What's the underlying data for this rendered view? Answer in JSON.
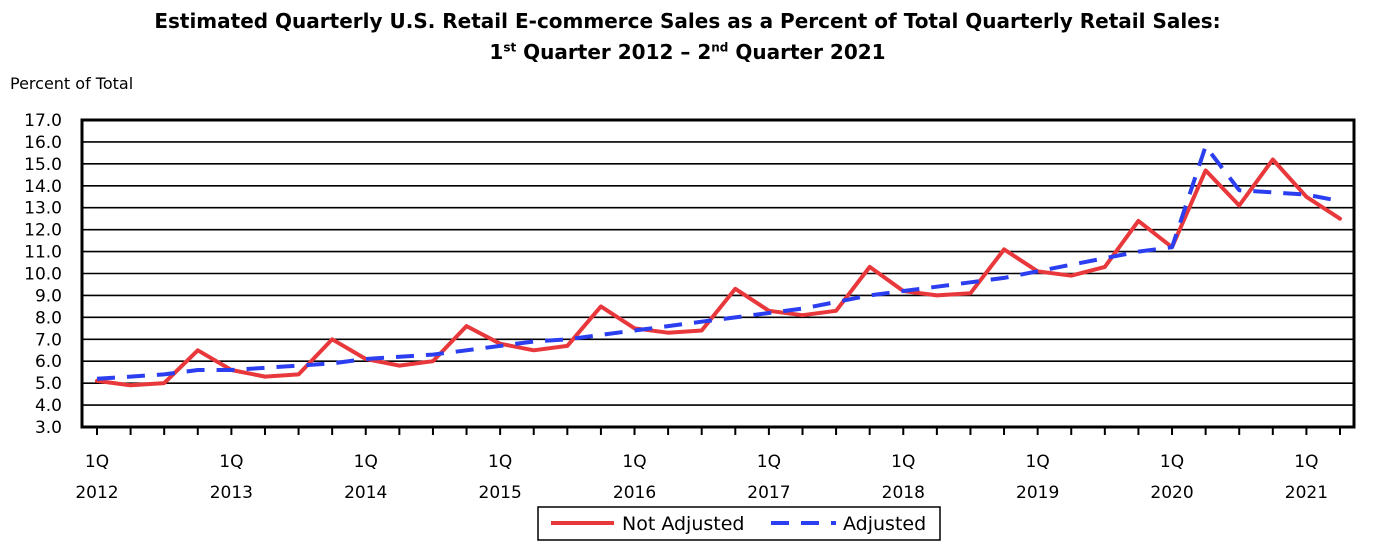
{
  "title": {
    "line1": "Estimated Quarterly U.S. Retail E-commerce Sales as a Percent of Total Quarterly Retail Sales:",
    "line2_a": "1",
    "line2_sup_a": "st",
    "line2_b": " Quarter 2012 – 2",
    "line2_sup_b": "nd",
    "line2_c": " Quarter 2021"
  },
  "ylabel": "Percent of Total",
  "colors": {
    "not_adjusted": "#E8383B",
    "adjusted": "#2B3FF0"
  },
  "chart_data": {
    "type": "line",
    "title": "Estimated Quarterly U.S. Retail E-commerce Sales as a Percent of Total Quarterly Retail Sales: 1st Quarter 2012 – 2nd Quarter 2021",
    "ylabel": "Percent of Total",
    "xlabel": "",
    "ylim": [
      3.0,
      17.0
    ],
    "ytick_labels": [
      "3.0",
      "4.0",
      "5.0",
      "6.0",
      "7.0",
      "8.0",
      "9.0",
      "10.0",
      "11.0",
      "12.0",
      "13.0",
      "14.0",
      "15.0",
      "16.0",
      "17.0"
    ],
    "xtick_labels": [
      {
        "q": "1Q",
        "year": "2012"
      },
      {
        "q": "1Q",
        "year": "2013"
      },
      {
        "q": "1Q",
        "year": "2014"
      },
      {
        "q": "1Q",
        "year": "2015"
      },
      {
        "q": "1Q",
        "year": "2016"
      },
      {
        "q": "1Q",
        "year": "2017"
      },
      {
        "q": "1Q",
        "year": "2018"
      },
      {
        "q": "1Q",
        "year": "2019"
      },
      {
        "q": "1Q",
        "year": "2020"
      },
      {
        "q": "1Q",
        "year": "2021"
      }
    ],
    "x": [
      "2012Q1",
      "2012Q2",
      "2012Q3",
      "2012Q4",
      "2013Q1",
      "2013Q2",
      "2013Q3",
      "2013Q4",
      "2014Q1",
      "2014Q2",
      "2014Q3",
      "2014Q4",
      "2015Q1",
      "2015Q2",
      "2015Q3",
      "2015Q4",
      "2016Q1",
      "2016Q2",
      "2016Q3",
      "2016Q4",
      "2017Q1",
      "2017Q2",
      "2017Q3",
      "2017Q4",
      "2018Q1",
      "2018Q2",
      "2018Q3",
      "2018Q4",
      "2019Q1",
      "2019Q2",
      "2019Q3",
      "2019Q4",
      "2020Q1",
      "2020Q2",
      "2020Q3",
      "2020Q4",
      "2021Q1",
      "2021Q2"
    ],
    "grid": true,
    "legend_position": "bottom-center",
    "series": [
      {
        "name": "Not Adjusted",
        "style": "solid",
        "values": [
          5.1,
          4.9,
          5.0,
          6.5,
          5.6,
          5.3,
          5.4,
          7.0,
          6.1,
          5.8,
          6.0,
          7.6,
          6.8,
          6.5,
          6.7,
          8.5,
          7.5,
          7.3,
          7.4,
          9.3,
          8.3,
          8.1,
          8.3,
          10.3,
          9.2,
          9.0,
          9.1,
          11.1,
          10.1,
          9.9,
          10.3,
          12.4,
          11.2,
          14.7,
          13.1,
          15.2,
          13.5,
          12.5
        ]
      },
      {
        "name": "Adjusted",
        "style": "dashed",
        "values": [
          5.2,
          5.3,
          5.4,
          5.6,
          5.6,
          5.7,
          5.8,
          5.9,
          6.1,
          6.2,
          6.3,
          6.5,
          6.7,
          6.9,
          7.0,
          7.2,
          7.4,
          7.6,
          7.8,
          8.0,
          8.2,
          8.4,
          8.7,
          9.0,
          9.2,
          9.4,
          9.6,
          9.8,
          10.1,
          10.4,
          10.7,
          11.0,
          11.2,
          15.8,
          13.8,
          13.7,
          13.6,
          13.3
        ]
      }
    ]
  }
}
